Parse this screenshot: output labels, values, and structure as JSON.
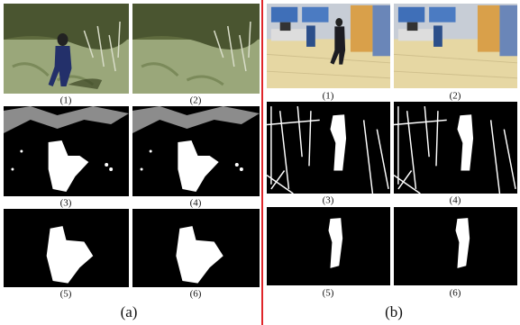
{
  "panels": [
    {
      "label": "(a)",
      "captions": [
        "(1)",
        "(2)",
        "(3)",
        "(4)",
        "(5)",
        "(6)"
      ]
    },
    {
      "label": "(b)",
      "captions": [
        "(1)",
        "(2)",
        "(3)",
        "(4)",
        "(5)",
        "(6)"
      ]
    }
  ]
}
